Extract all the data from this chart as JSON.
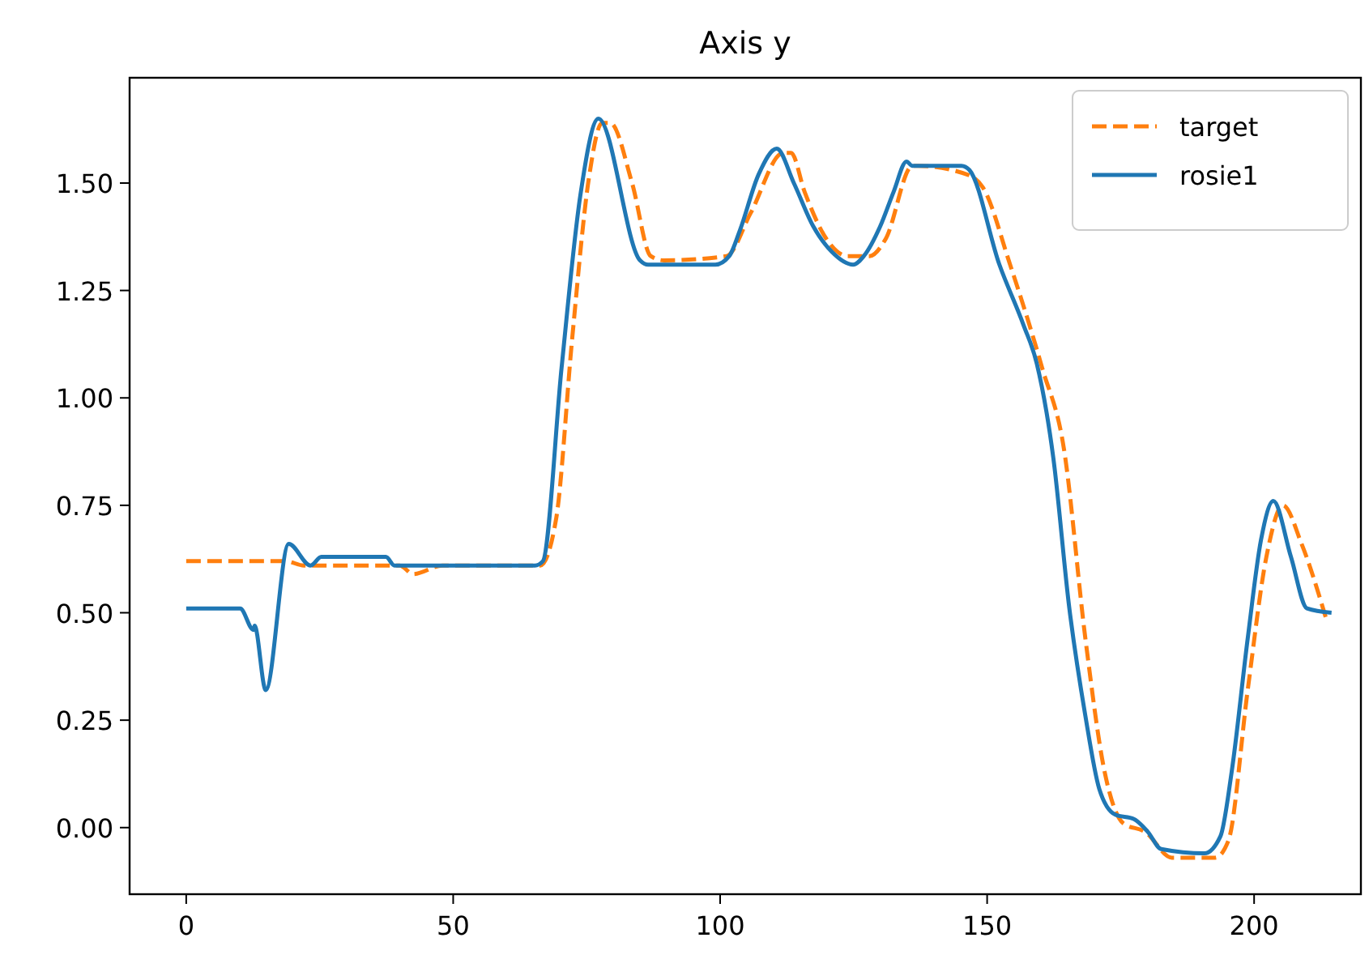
{
  "chart_data": {
    "type": "line",
    "title": "Axis y",
    "legend": "top right",
    "xlim": [
      -10.6,
      220
    ],
    "ylim": [
      -0.155,
      1.745
    ],
    "xticks": [
      0,
      50,
      100,
      150,
      200
    ],
    "yticks": [
      {
        "value": 0,
        "label": "0.00"
      },
      {
        "value": 0.25,
        "label": "0.25"
      },
      {
        "value": 0.5,
        "label": "0.50"
      },
      {
        "value": 0.75,
        "label": "0.75"
      },
      {
        "value": 1,
        "label": "1.00"
      },
      {
        "value": 1.25,
        "label": "1.25"
      },
      {
        "value": 1.5,
        "label": "1.50"
      }
    ],
    "series": [
      {
        "name": "target",
        "color": "#ff7f0e",
        "line_style": "dashed",
        "x": [
          0,
          18.7,
          22,
          40,
          42.5,
          48,
          66.3,
          69.3,
          72.3,
          75.4,
          77.9,
          79.4,
          83.5,
          87,
          89.5,
          101.2,
          105.7,
          111.8,
          113.3,
          115.8,
          119.9,
          123.9,
          128,
          131,
          136,
          137.1,
          146.2,
          149.2,
          154.3,
          160.3,
          164.4,
          168.4,
          172,
          175.5,
          179.6,
          184.6,
          192.7,
          195.2,
          198.8,
          202.3,
          205.4,
          208.9,
          213.4
        ],
        "values": [
          0.62,
          0.62,
          0.61,
          0.61,
          0.59,
          0.61,
          0.61,
          0.72,
          1.14,
          1.51,
          1.64,
          1.64,
          1.5,
          1.33,
          1.32,
          1.33,
          1.43,
          1.57,
          1.57,
          1.48,
          1.37,
          1.33,
          1.33,
          1.37,
          1.54,
          1.54,
          1.52,
          1.49,
          1.31,
          1.07,
          0.88,
          0.44,
          0.13,
          0.01,
          -0.01,
          -0.07,
          -0.07,
          -0.03,
          0.32,
          0.63,
          0.75,
          0.66,
          0.49
        ]
      },
      {
        "name": "rosie1",
        "color": "#1f77b4",
        "line_style": "solid",
        "x": [
          0,
          10.1,
          12.6,
          12.8,
          14.9,
          19.2,
          23.3,
          25.3,
          37.4,
          39,
          65.3,
          66.8,
          70.3,
          73.8,
          77.2,
          85,
          86.5,
          99.1,
          101.7,
          103.7,
          107.2,
          110.6,
          113.8,
          117.4,
          120.9,
          124.9,
          126.9,
          130,
          132.5,
          134.9,
          136,
          145.2,
          146.7,
          152.3,
          156.8,
          159.3,
          162.4,
          165.4,
          168.4,
          171,
          174,
          177.5,
          180.1,
          182.6,
          190.7,
          193.7,
          195.8,
          198.8,
          201.3,
          203.6,
          206.9,
          209.9,
          214.5
        ],
        "values": [
          0.51,
          0.51,
          0.46,
          0.47,
          0.32,
          0.66,
          0.61,
          0.63,
          0.63,
          0.61,
          0.61,
          0.62,
          1.07,
          1.47,
          1.65,
          1.32,
          1.31,
          1.31,
          1.33,
          1.39,
          1.52,
          1.58,
          1.5,
          1.4,
          1.34,
          1.31,
          1.33,
          1.4,
          1.48,
          1.55,
          1.54,
          1.54,
          1.53,
          1.31,
          1.17,
          1.08,
          0.86,
          0.51,
          0.26,
          0.09,
          0.03,
          0.02,
          -0.01,
          -0.05,
          -0.06,
          -0.02,
          0.13,
          0.44,
          0.67,
          0.76,
          0.63,
          0.51,
          0.5
        ]
      }
    ]
  }
}
